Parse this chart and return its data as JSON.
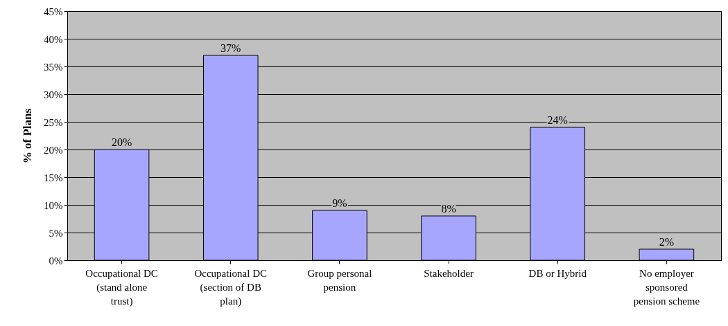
{
  "chart_data": {
    "type": "bar",
    "ylabel": "% of Plans",
    "categories": [
      "Occupational DC (stand alone trust)",
      "Occupational DC (section of DB plan)",
      "Group personal pension",
      "Stakeholder",
      "DB or Hybrid",
      "No employer sponsored pension scheme"
    ],
    "values": [
      20,
      37,
      9,
      8,
      24,
      2
    ],
    "value_labels": [
      "20%",
      "37%",
      "9%",
      "8%",
      "24%",
      "2%"
    ],
    "color": "#a6a6ff",
    "ylim": [
      0,
      45
    ],
    "yticks": [
      {
        "value": 0,
        "label": "0%"
      },
      {
        "value": 5,
        "label": "5%"
      },
      {
        "value": 10,
        "label": "10%"
      },
      {
        "value": 15,
        "label": "15%"
      },
      {
        "value": 20,
        "label": "20%"
      },
      {
        "value": 25,
        "label": "25%"
      },
      {
        "value": 30,
        "label": "30%"
      },
      {
        "value": 35,
        "label": "35%"
      },
      {
        "value": 40,
        "label": "40%"
      },
      {
        "value": 45,
        "label": "45%"
      }
    ],
    "grid": "y"
  }
}
